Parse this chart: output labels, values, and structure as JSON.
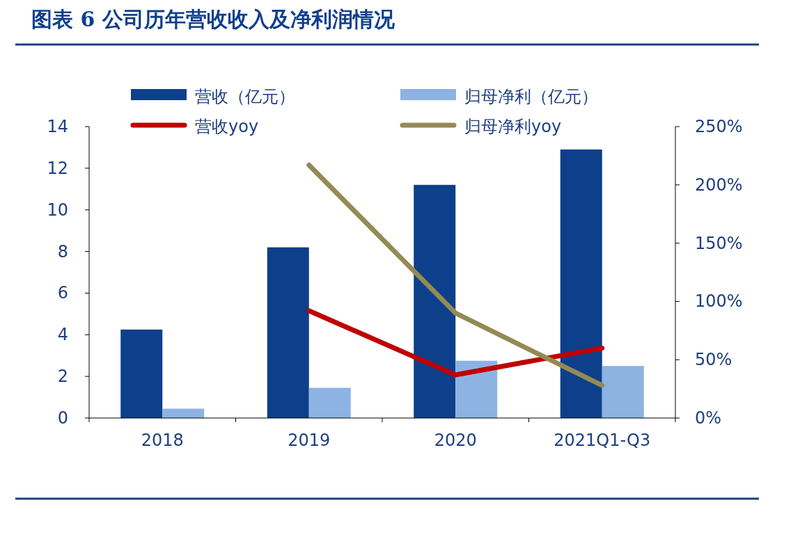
{
  "chart_data": {
    "type": "bar",
    "title": "图表 6   公司历年营收收入及净利润情况",
    "categories": [
      "2018",
      "2019",
      "2020",
      "2021Q1-Q3"
    ],
    "series": [
      {
        "name": "营收（亿元）",
        "color": "#0d3f8b",
        "values": [
          4.25,
          8.2,
          11.2,
          12.9
        ]
      },
      {
        "name": "归母净利（亿元）",
        "color": "#8db3e2",
        "values": [
          0.45,
          1.45,
          2.75,
          2.5
        ]
      },
      {
        "name": "营收yoy",
        "type": "line",
        "axis": "y2",
        "color": "#c00000",
        "values": [
          null,
          92,
          37,
          60
        ]
      },
      {
        "name": "归母净利yoy",
        "type": "line",
        "axis": "y2",
        "color": "#948a54",
        "values": [
          null,
          217,
          90,
          28
        ]
      }
    ],
    "ylim": [
      0,
      14
    ],
    "yticks": [
      0,
      2,
      4,
      6,
      8,
      10,
      12,
      14
    ],
    "y2lim": [
      0,
      250
    ],
    "y2ticks": [
      {
        "value": 0,
        "label": "0%"
      },
      {
        "value": 50,
        "label": "50%"
      },
      {
        "value": 100,
        "label": "100%"
      },
      {
        "value": 150,
        "label": "150%"
      },
      {
        "value": 200,
        "label": "200%"
      },
      {
        "value": 250,
        "label": "250%"
      }
    ],
    "legend": "top",
    "grid": false
  }
}
